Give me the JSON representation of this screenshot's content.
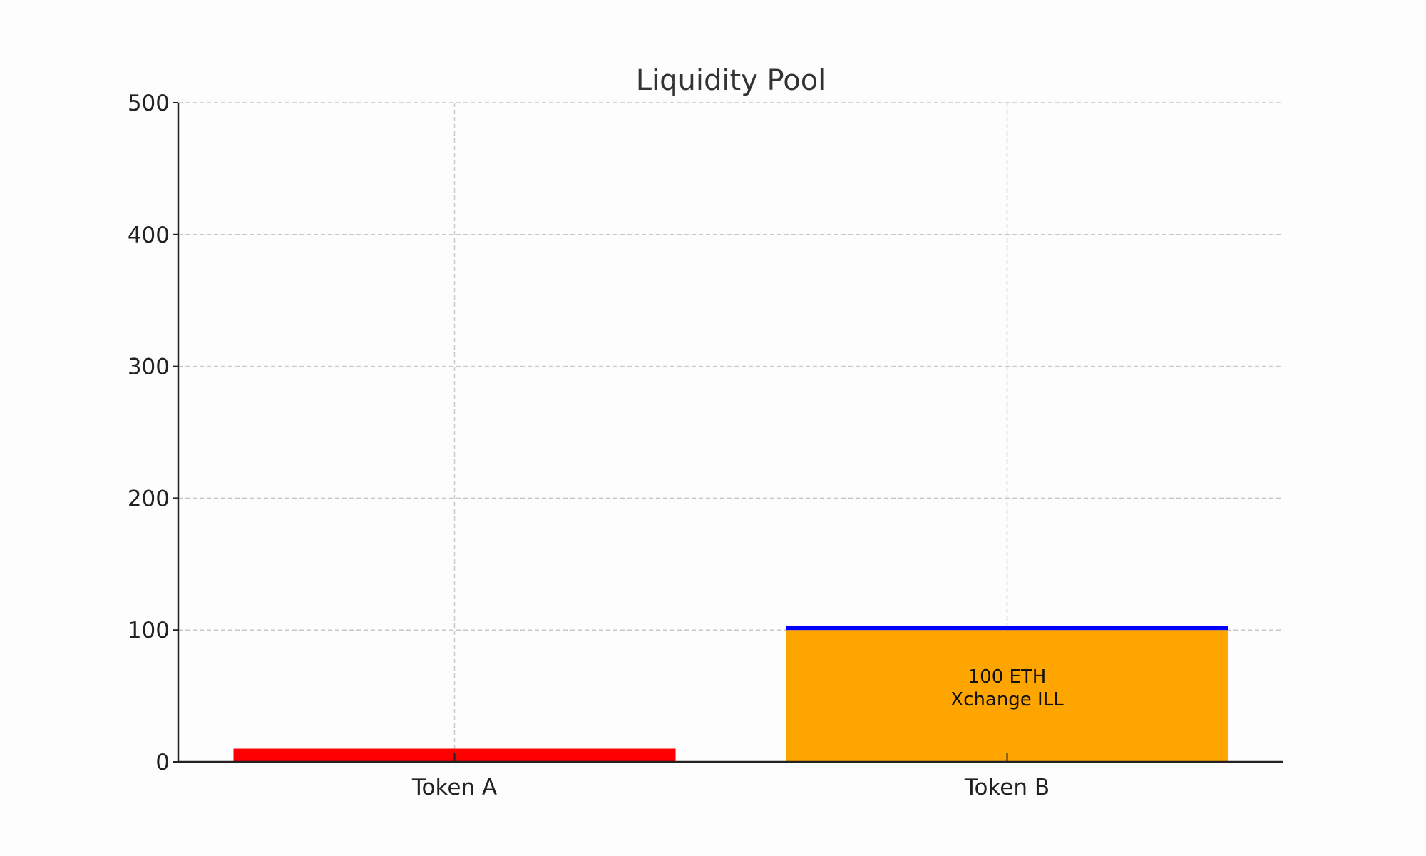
{
  "chart_data": {
    "type": "bar",
    "title": "Liquidity Pool",
    "xlabel": "",
    "ylabel": "",
    "categories": [
      "Token A",
      "Token B"
    ],
    "series": [
      {
        "values": [
          10,
          100
        ],
        "colors": [
          "#ff0000",
          "#ffa500"
        ]
      },
      {
        "values": [
          0,
          3
        ],
        "colors": [
          "#0000ff",
          "#0000ff"
        ]
      }
    ],
    "ylim": [
      0,
      500
    ],
    "yticks": [
      0,
      100,
      200,
      300,
      400,
      500
    ],
    "grid": true,
    "annotations": [
      {
        "category": "Token B",
        "lines": [
          "100 ETH",
          "Xchange ILL"
        ]
      }
    ]
  }
}
